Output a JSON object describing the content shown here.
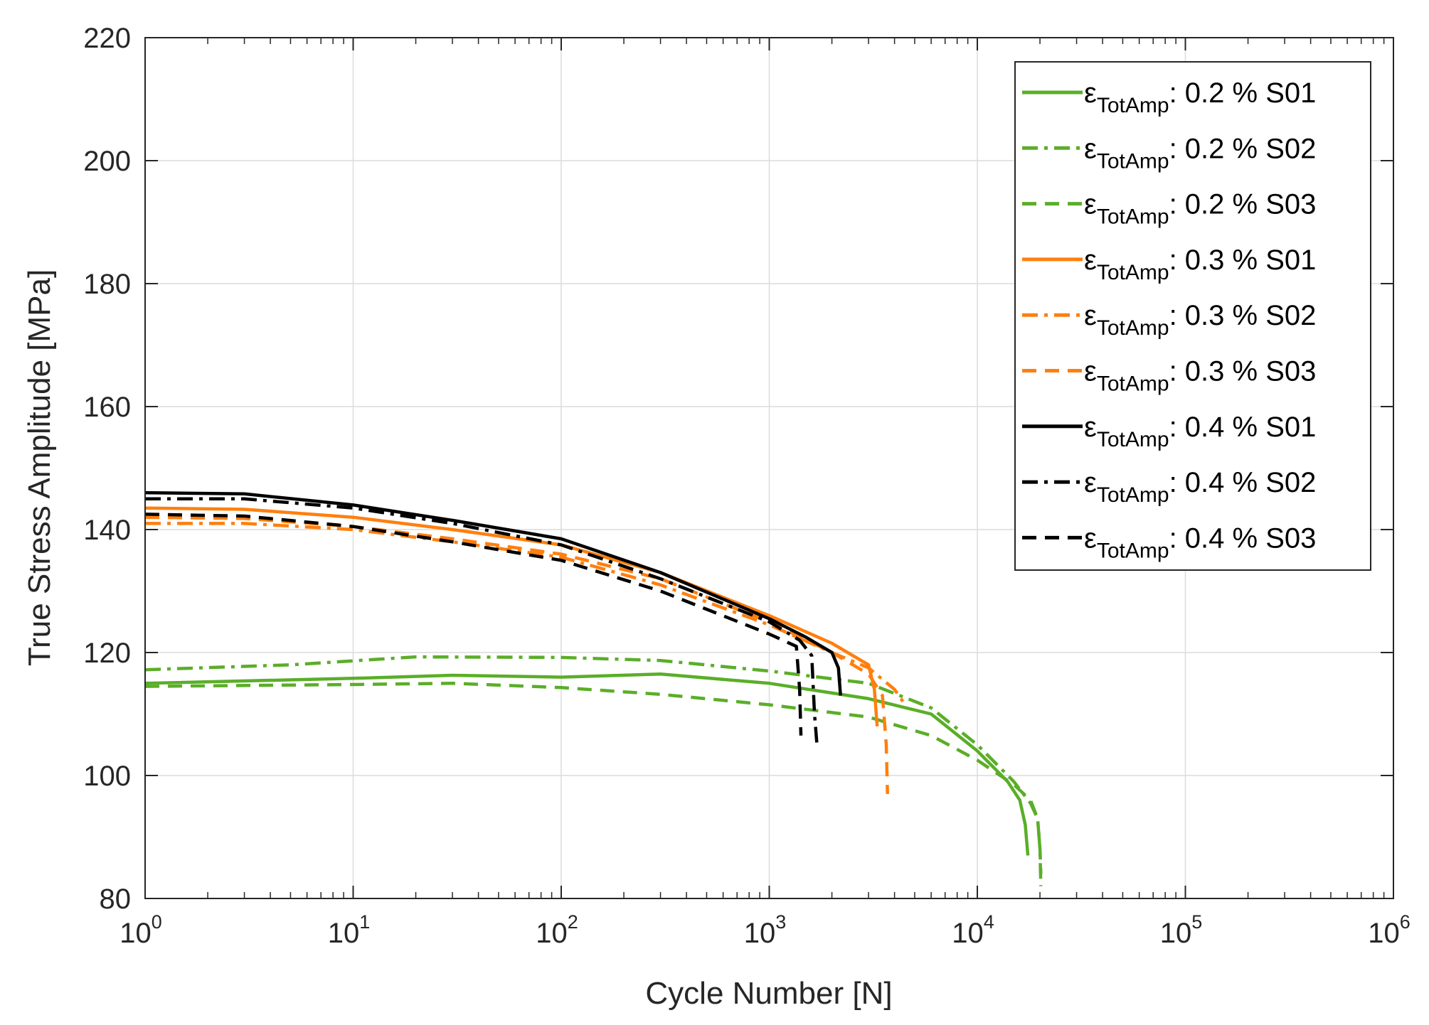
{
  "colors": {
    "green": "#5AAE28",
    "orange": "#FF7F0E",
    "black": "#000000",
    "grid": "#DCDCDC",
    "axis": "#262626"
  },
  "chart_data": {
    "type": "line",
    "title": "",
    "xlabel": "Cycle Number [N]",
    "ylabel": "True Stress Amplitude [MPa]",
    "xscale": "log",
    "xlim": [
      1,
      1000000
    ],
    "ylim": [
      80,
      220
    ],
    "x_ticks": [
      {
        "base": "10",
        "exp": "0",
        "value": 1
      },
      {
        "base": "10",
        "exp": "1",
        "value": 10
      },
      {
        "base": "10",
        "exp": "2",
        "value": 100
      },
      {
        "base": "10",
        "exp": "3",
        "value": 1000
      },
      {
        "base": "10",
        "exp": "4",
        "value": 10000
      },
      {
        "base": "10",
        "exp": "5",
        "value": 100000
      },
      {
        "base": "10",
        "exp": "6",
        "value": 1000000
      }
    ],
    "y_ticks": [
      "80",
      "100",
      "120",
      "140",
      "160",
      "180",
      "200",
      "220"
    ],
    "grid": true,
    "legend_position": "top-right",
    "series": [
      {
        "legend_symbol": "ε",
        "legend_sub": "TotAmp",
        "legend_rest": ": 0.2 % S01",
        "color": "green",
        "style": "solid",
        "points": [
          [
            1,
            115
          ],
          [
            10,
            115.8
          ],
          [
            30,
            116.3
          ],
          [
            100,
            116
          ],
          [
            300,
            116.5
          ],
          [
            1000,
            115
          ],
          [
            3000,
            112.5
          ],
          [
            6000,
            110
          ],
          [
            10000,
            104
          ],
          [
            14000,
            99
          ],
          [
            16000,
            96
          ],
          [
            17000,
            92
          ],
          [
            17500,
            87
          ]
        ]
      },
      {
        "legend_symbol": "ε",
        "legend_sub": "TotAmp",
        "legend_rest": ": 0.2 % S02",
        "color": "green",
        "style": "dashdot",
        "points": [
          [
            1,
            117.2
          ],
          [
            5,
            118
          ],
          [
            20,
            119.3
          ],
          [
            100,
            119.2
          ],
          [
            300,
            118.7
          ],
          [
            1000,
            117
          ],
          [
            3000,
            115
          ],
          [
            6000,
            111
          ],
          [
            10000,
            105
          ],
          [
            15000,
            99
          ],
          [
            18000,
            95.5
          ],
          [
            19500,
            93
          ],
          [
            20000,
            88
          ],
          [
            20200,
            82
          ]
        ]
      },
      {
        "legend_symbol": "ε",
        "legend_sub": "TotAmp",
        "legend_rest": ": 0.2 % S03",
        "color": "green",
        "style": "dashed",
        "points": [
          [
            1,
            114.5
          ],
          [
            10,
            114.8
          ],
          [
            30,
            115
          ],
          [
            100,
            114.3
          ],
          [
            300,
            113.2
          ],
          [
            1000,
            111.5
          ],
          [
            3000,
            109.5
          ],
          [
            6000,
            106.5
          ],
          [
            10000,
            102.5
          ],
          [
            15000,
            98.5
          ],
          [
            18000,
            96
          ],
          [
            19500,
            93
          ],
          [
            20000,
            88
          ],
          [
            20200,
            84
          ]
        ]
      },
      {
        "legend_symbol": "ε",
        "legend_sub": "TotAmp",
        "legend_rest": ": 0.3 % S01",
        "color": "orange",
        "style": "solid",
        "points": [
          [
            1,
            143.5
          ],
          [
            3,
            143.3
          ],
          [
            10,
            142
          ],
          [
            30,
            140
          ],
          [
            100,
            137.5
          ],
          [
            300,
            133
          ],
          [
            1000,
            126
          ],
          [
            2000,
            121.5
          ],
          [
            3000,
            118
          ],
          [
            3200,
            114
          ],
          [
            3300,
            108
          ]
        ]
      },
      {
        "legend_symbol": "ε",
        "legend_sub": "TotAmp",
        "legend_rest": ": 0.3 % S02",
        "color": "orange",
        "style": "dashdot",
        "points": [
          [
            1,
            141
          ],
          [
            3,
            141
          ],
          [
            10,
            140
          ],
          [
            30,
            138
          ],
          [
            100,
            135.5
          ],
          [
            300,
            131
          ],
          [
            1000,
            124.5
          ],
          [
            2000,
            120
          ],
          [
            3000,
            117.5
          ],
          [
            4000,
            114
          ],
          [
            4500,
            111.5
          ]
        ]
      },
      {
        "legend_symbol": "ε",
        "legend_sub": "TotAmp",
        "legend_rest": ": 0.3 % S03",
        "color": "orange",
        "style": "dashed",
        "points": [
          [
            1,
            142
          ],
          [
            3,
            141.8
          ],
          [
            10,
            140.5
          ],
          [
            30,
            138.5
          ],
          [
            100,
            136
          ],
          [
            300,
            132
          ],
          [
            1000,
            125
          ],
          [
            2000,
            120
          ],
          [
            3000,
            116.5
          ],
          [
            3500,
            113
          ],
          [
            3650,
            105
          ],
          [
            3700,
            97
          ]
        ]
      },
      {
        "legend_symbol": "ε",
        "legend_sub": "TotAmp",
        "legend_rest": ": 0.4 % S01",
        "color": "black",
        "style": "solid",
        "points": [
          [
            1,
            146
          ],
          [
            3,
            145.8
          ],
          [
            10,
            144
          ],
          [
            30,
            141.5
          ],
          [
            100,
            138.5
          ],
          [
            300,
            133
          ],
          [
            1000,
            125.5
          ],
          [
            1500,
            122.5
          ],
          [
            2000,
            120
          ],
          [
            2150,
            117.5
          ],
          [
            2200,
            113
          ]
        ]
      },
      {
        "legend_symbol": "ε",
        "legend_sub": "TotAmp",
        "legend_rest": ": 0.4 % S02",
        "color": "black",
        "style": "dashdot",
        "points": [
          [
            1,
            145
          ],
          [
            3,
            145
          ],
          [
            10,
            143.5
          ],
          [
            30,
            141
          ],
          [
            100,
            137.5
          ],
          [
            300,
            132
          ],
          [
            1000,
            125
          ],
          [
            1400,
            122
          ],
          [
            1600,
            119.5
          ],
          [
            1650,
            110
          ],
          [
            1700,
            104.5
          ]
        ]
      },
      {
        "legend_symbol": "ε",
        "legend_sub": "TotAmp",
        "legend_rest": ": 0.4 % S03",
        "color": "black",
        "style": "dashed",
        "points": [
          [
            1,
            142.5
          ],
          [
            3,
            142.2
          ],
          [
            10,
            140.5
          ],
          [
            30,
            138
          ],
          [
            100,
            135
          ],
          [
            300,
            130
          ],
          [
            1000,
            123
          ],
          [
            1350,
            121
          ],
          [
            1400,
            114
          ],
          [
            1420,
            106.5
          ]
        ]
      }
    ]
  }
}
